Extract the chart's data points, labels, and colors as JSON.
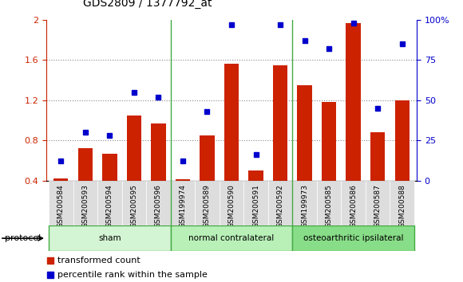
{
  "title": "GDS2809 / 1377792_at",
  "categories": [
    "GSM200584",
    "GSM200593",
    "GSM200594",
    "GSM200595",
    "GSM200596",
    "GSM199974",
    "GSM200589",
    "GSM200590",
    "GSM200591",
    "GSM200592",
    "GSM199973",
    "GSM200585",
    "GSM200586",
    "GSM200587",
    "GSM200588"
  ],
  "red_values": [
    0.42,
    0.72,
    0.67,
    1.05,
    0.97,
    0.41,
    0.85,
    1.56,
    0.5,
    1.55,
    1.35,
    1.18,
    1.97,
    0.88,
    1.2
  ],
  "blue_pct": [
    12,
    30,
    28,
    55,
    52,
    12,
    43,
    97,
    16,
    97,
    87,
    82,
    98,
    45,
    85
  ],
  "ylim_left": [
    0.4,
    2.0
  ],
  "ylim_right": [
    0,
    100
  ],
  "yticks_left": [
    0.4,
    0.8,
    1.2,
    1.6,
    2.0
  ],
  "ytick_labels_left": [
    "0.4",
    "0.8",
    "1.2",
    "1.6",
    "2"
  ],
  "yticks_right": [
    0,
    25,
    50,
    75,
    100
  ],
  "ytick_labels_right": [
    "0",
    "25",
    "50",
    "75",
    "100%"
  ],
  "groups": [
    {
      "label": "sham",
      "start": 0,
      "end": 5,
      "color": "#d4f5d4"
    },
    {
      "label": "normal contralateral",
      "start": 5,
      "end": 10,
      "color": "#b8f0b8"
    },
    {
      "label": "osteoarthritic ipsilateral",
      "start": 10,
      "end": 15,
      "color": "#88dd88"
    }
  ],
  "protocol_label": "protocol",
  "legend_red": "transformed count",
  "legend_blue": "percentile rank within the sample",
  "bar_color": "#cc2200",
  "dot_color": "#0000cc",
  "bar_bottom": 0.4,
  "title_fontsize": 10,
  "axis_color_left": "#cc2200",
  "axis_color_right": "#0000cc",
  "grid_color": "#888888",
  "bg_color": "#ffffff",
  "xtick_bg_color": "#dddddd",
  "group_border_color": "#44aa44",
  "group_separator_color": "#44aa44"
}
